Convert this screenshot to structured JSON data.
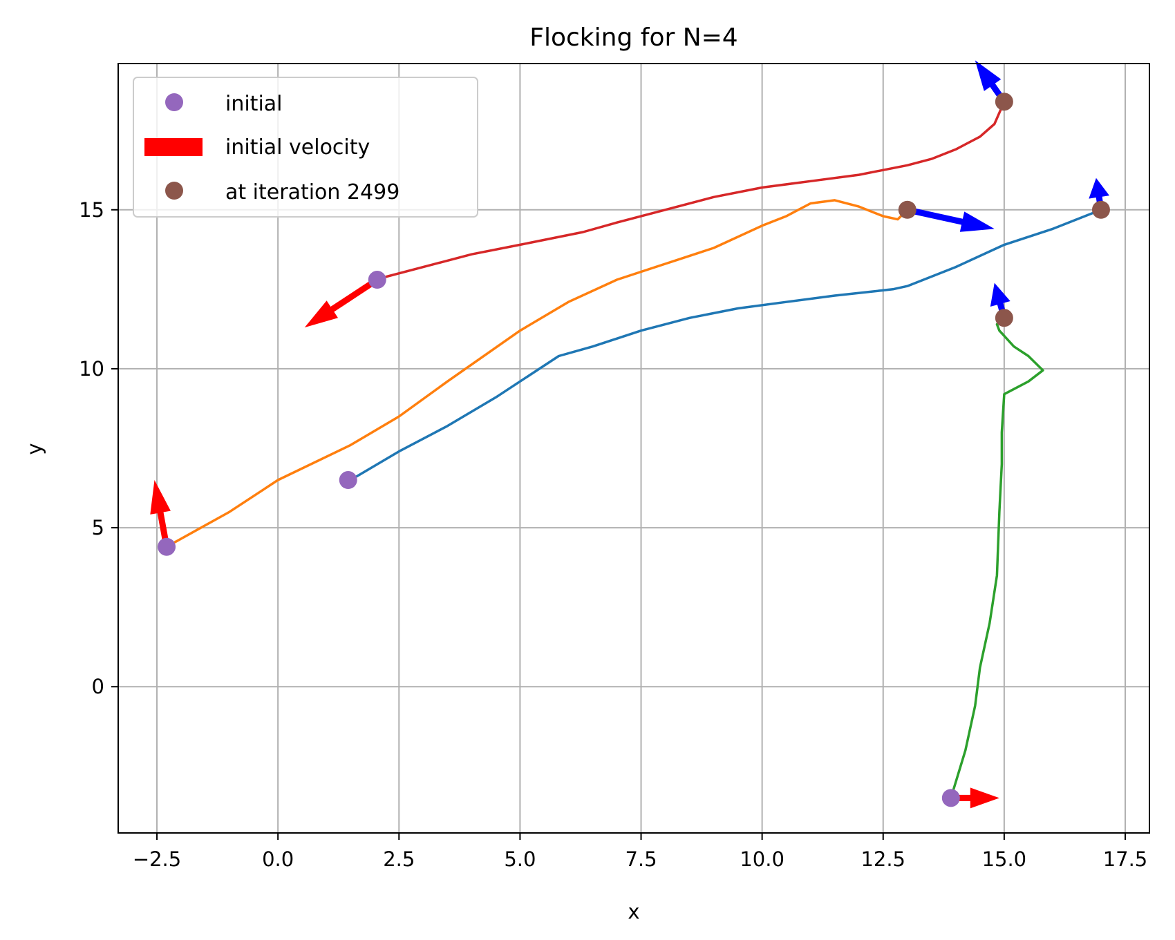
{
  "chart_data": {
    "type": "line",
    "title": "Flocking for N=4",
    "xlabel": "x",
    "ylabel": "y",
    "xlim": [
      -3.3,
      18.0
    ],
    "ylim": [
      -4.6,
      19.6
    ],
    "xticks": [
      -2.5,
      0.0,
      2.5,
      5.0,
      7.5,
      10.0,
      12.5,
      15.0,
      17.5
    ],
    "xtick_labels": [
      "−2.5",
      "0.0",
      "2.5",
      "5.0",
      "7.5",
      "10.0",
      "12.5",
      "15.0",
      "17.5"
    ],
    "yticks": [
      0,
      5,
      10,
      15
    ],
    "ytick_labels": [
      "0",
      "5",
      "10",
      "15"
    ],
    "grid": true,
    "legend_position": "top-left",
    "legend": [
      {
        "label": "initial",
        "kind": "marker",
        "color": "#9467bd"
      },
      {
        "label": "initial velocity",
        "kind": "bar",
        "color": "#ff0000"
      },
      {
        "label": "at iteration 2499",
        "kind": "marker",
        "color": "#8c564b"
      }
    ],
    "series": [
      {
        "color": "#1f77b4",
        "points": [
          [
            1.5,
            6.5
          ],
          [
            2.5,
            7.4
          ],
          [
            3.5,
            8.2
          ],
          [
            4.5,
            9.1
          ],
          [
            5.8,
            10.4
          ],
          [
            6.5,
            10.7
          ],
          [
            7.5,
            11.2
          ],
          [
            8.5,
            11.6
          ],
          [
            9.5,
            11.9
          ],
          [
            10.5,
            12.1
          ],
          [
            11.5,
            12.3
          ],
          [
            12.7,
            12.5
          ],
          [
            13.0,
            12.6
          ],
          [
            14.0,
            13.2
          ],
          [
            15.0,
            13.9
          ],
          [
            16.0,
            14.4
          ],
          [
            17.0,
            15.0
          ]
        ]
      },
      {
        "color": "#ff7f0e",
        "points": [
          [
            -2.3,
            4.4
          ],
          [
            -1.0,
            5.5
          ],
          [
            0.0,
            6.5
          ],
          [
            1.5,
            7.6
          ],
          [
            2.5,
            8.5
          ],
          [
            3.5,
            9.6
          ],
          [
            5.0,
            11.2
          ],
          [
            6.0,
            12.1
          ],
          [
            7.0,
            12.8
          ],
          [
            8.0,
            13.3
          ],
          [
            9.0,
            13.8
          ],
          [
            10.0,
            14.5
          ],
          [
            10.5,
            14.8
          ],
          [
            11.0,
            15.2
          ],
          [
            11.5,
            15.3
          ],
          [
            12.0,
            15.1
          ],
          [
            12.5,
            14.8
          ],
          [
            12.8,
            14.7
          ],
          [
            13.0,
            15.0
          ]
        ]
      },
      {
        "color": "#2ca02c",
        "points": [
          [
            13.9,
            -3.5
          ],
          [
            14.2,
            -2.0
          ],
          [
            14.4,
            -0.6
          ],
          [
            14.5,
            0.6
          ],
          [
            14.7,
            2.0
          ],
          [
            14.85,
            3.5
          ],
          [
            14.9,
            5.5
          ],
          [
            14.95,
            7.0
          ],
          [
            14.95,
            8.0
          ],
          [
            15.0,
            9.2
          ],
          [
            15.5,
            9.6
          ],
          [
            15.8,
            9.95
          ],
          [
            15.5,
            10.4
          ],
          [
            15.2,
            10.7
          ],
          [
            14.9,
            11.2
          ],
          [
            14.85,
            11.4
          ],
          [
            15.0,
            11.6
          ]
        ]
      },
      {
        "color": "#d62728",
        "points": [
          [
            2.0,
            12.8
          ],
          [
            3.0,
            13.2
          ],
          [
            4.0,
            13.6
          ],
          [
            5.0,
            13.9
          ],
          [
            6.3,
            14.3
          ],
          [
            7.0,
            14.6
          ],
          [
            8.0,
            15.0
          ],
          [
            9.0,
            15.4
          ],
          [
            10.0,
            15.7
          ],
          [
            11.0,
            15.9
          ],
          [
            12.0,
            16.1
          ],
          [
            13.0,
            16.4
          ],
          [
            13.5,
            16.6
          ],
          [
            14.0,
            16.9
          ],
          [
            14.5,
            17.3
          ],
          [
            14.8,
            17.7
          ],
          [
            15.0,
            18.4
          ]
        ]
      }
    ],
    "initial_points": {
      "color": "#9467bd",
      "points": [
        [
          1.45,
          6.5
        ],
        [
          -2.3,
          4.4
        ],
        [
          13.9,
          -3.5
        ],
        [
          2.05,
          12.8
        ]
      ]
    },
    "final_points": {
      "color": "#8c564b",
      "points": [
        [
          17.0,
          15.0
        ],
        [
          13.0,
          15.0
        ],
        [
          15.0,
          11.6
        ],
        [
          15.0,
          18.4
        ]
      ]
    },
    "initial_velocity": {
      "color": "#ff0000",
      "arrows": [
        [
          -2.3,
          4.4,
          -0.25,
          2.1
        ],
        [
          13.9,
          -3.5,
          1.0,
          0.0
        ],
        [
          2.05,
          12.8,
          -1.5,
          -1.5
        ]
      ]
    },
    "final_velocity": {
      "color": "#0000ff",
      "arrows": [
        [
          17.0,
          15.0,
          -0.1,
          1.0
        ],
        [
          13.0,
          15.0,
          1.8,
          -0.6
        ],
        [
          15.0,
          11.6,
          -0.2,
          1.1
        ],
        [
          15.0,
          18.4,
          -0.6,
          1.3
        ]
      ]
    }
  }
}
